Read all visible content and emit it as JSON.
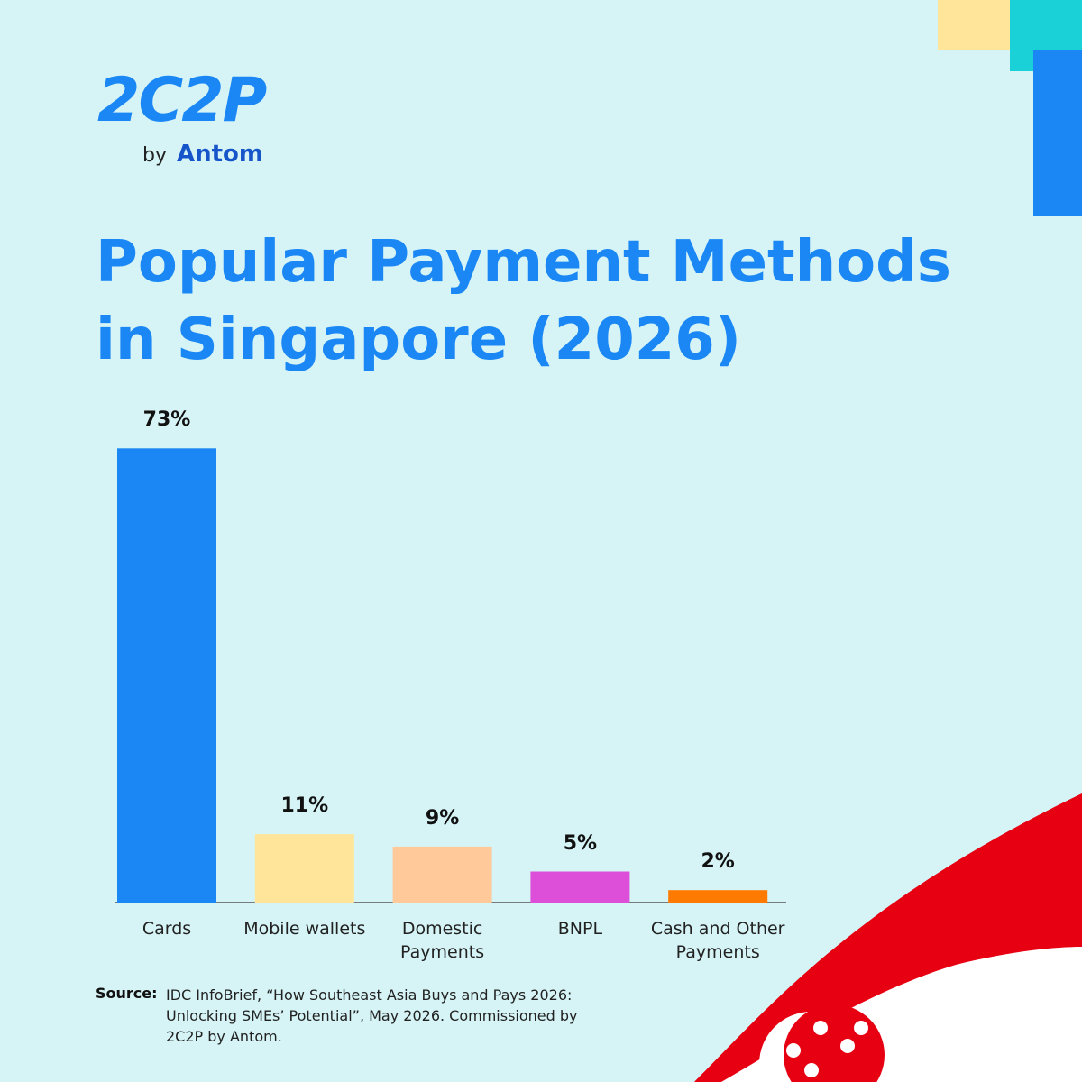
{
  "logo": "2C2P",
  "logo_by": "by",
  "logo_brand": "Antom",
  "chart_data": {
    "type": "bar",
    "title": "Popular Payment Methods in Singapore (2026)",
    "categories": [
      "Cards",
      "Mobile wallets",
      "Domestic Payments",
      "BNPL",
      "Cash and Other Payments"
    ],
    "values": [
      73,
      11,
      9,
      5,
      2
    ],
    "value_labels": [
      "73%",
      "11%",
      "9%",
      "5%",
      "2%"
    ],
    "colors": [
      "#1a87f5",
      "#ffe59a",
      "#ffc99a",
      "#dd4fd9",
      "#ff7a00"
    ]
  },
  "source": {
    "label": "Source:",
    "text": "IDC InfoBrief, “How Southeast Asia Buys and Pays 2026: Unlocking SMEs’ Potential”, May 2026. Commissioned by 2C2P by Antom."
  }
}
